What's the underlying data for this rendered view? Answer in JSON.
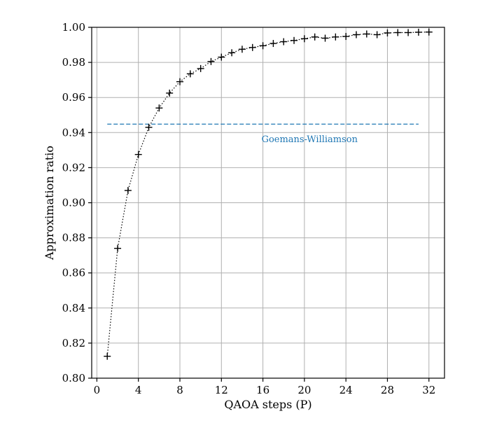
{
  "chart_data": {
    "type": "line",
    "xlabel": "QAOA steps (P)",
    "ylabel": "Approximation ratio",
    "xlim": [
      -0.5,
      33.5
    ],
    "ylim": [
      0.8,
      1.0
    ],
    "xticks": [
      0,
      4,
      8,
      12,
      16,
      20,
      24,
      28,
      32
    ],
    "yticks": [
      0.8,
      0.82,
      0.84,
      0.86,
      0.88,
      0.9,
      0.92,
      0.94,
      0.96,
      0.98,
      1.0
    ],
    "grid": true,
    "series": [
      {
        "marker": "plus",
        "line_style": "dotted",
        "color": "#000000",
        "x": [
          1,
          2,
          3,
          4,
          5,
          6,
          7,
          8,
          9,
          10,
          11,
          12,
          13,
          14,
          15,
          16,
          17,
          18,
          19,
          20,
          21,
          22,
          23,
          24,
          25,
          26,
          27,
          28,
          29,
          30,
          31,
          32
        ],
        "values": [
          0.8125,
          0.874,
          0.907,
          0.9275,
          0.943,
          0.954,
          0.9625,
          0.969,
          0.9735,
          0.9765,
          0.9805,
          0.983,
          0.9855,
          0.9875,
          0.9885,
          0.9895,
          0.9908,
          0.9918,
          0.9925,
          0.9935,
          0.9945,
          0.9938,
          0.9945,
          0.9948,
          0.9958,
          0.9962,
          0.9958,
          0.9968,
          0.997,
          0.997,
          0.9972,
          0.9973
        ]
      }
    ],
    "reference_line": {
      "label": "Goemans-Williamson",
      "y": 0.9448,
      "x_start": 1,
      "x_end": 31,
      "line_style": "dashed",
      "color": "#1f77b4",
      "label_x": 20.5,
      "label_y": 0.9345
    }
  }
}
